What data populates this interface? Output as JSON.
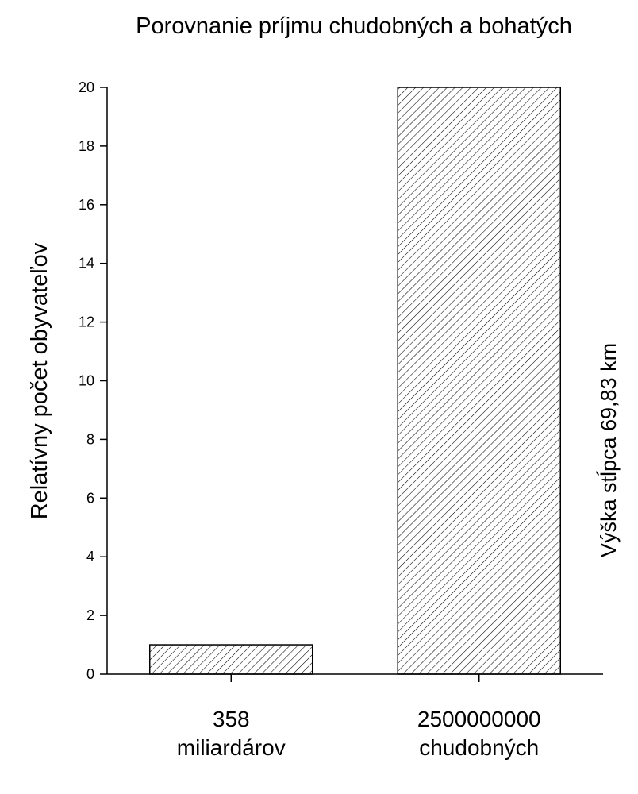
{
  "chart_data": {
    "type": "bar",
    "title": "Porovnanie príjmu chudobných a bohatých",
    "ylabel": "Relatívny počet obyvateľov",
    "xlabel": "",
    "ylim": [
      0,
      20
    ],
    "yticks": [
      0,
      2,
      4,
      6,
      8,
      10,
      12,
      14,
      16,
      18,
      20
    ],
    "categories": [
      {
        "line1": "358",
        "line2": "miliardárov"
      },
      {
        "line1": "2500000000",
        "line2": "chudobných"
      }
    ],
    "values": [
      1,
      20
    ],
    "annotation": "Výška stĺpca  69,83 km",
    "bar_fill": "hatched",
    "bar_color": "#000000",
    "grid": false
  }
}
